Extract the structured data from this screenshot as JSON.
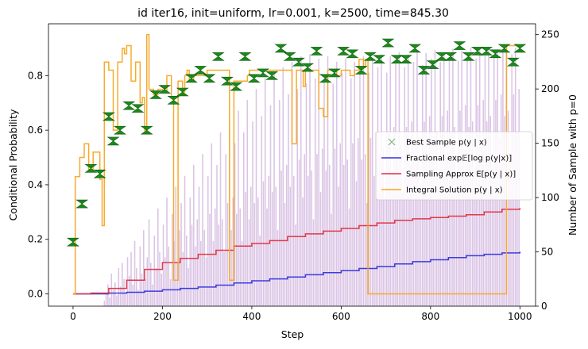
{
  "chart_data": {
    "type": "line",
    "title": "id iter16, init=uniform, lr=0.001, k=2500, time=845.30",
    "xlabel": "Step",
    "ylabel": "Conditional Probability",
    "y2label": "Number of Sample with p=0",
    "xlim": [
      -55,
      1035
    ],
    "ylim": [
      -0.045,
      0.99
    ],
    "y2lim": [
      0,
      260
    ],
    "xticks": [
      0,
      200,
      400,
      600,
      800,
      1000
    ],
    "yticks": [
      0.0,
      0.2,
      0.4,
      0.6,
      0.8
    ],
    "ytick_labels": [
      "0.0",
      "0.2",
      "0.4",
      "0.6",
      "0.8"
    ],
    "y2ticks": [
      0,
      50,
      100,
      150,
      200,
      250
    ],
    "grid": false,
    "legend_position": "center-right",
    "colors": {
      "best_sample": "#1a8a1a",
      "fractional": "#3333dd",
      "sampling": "#e03040",
      "integral": "#f5a623",
      "zero_count_bars": "#b07cc6",
      "y2label": "#800080"
    },
    "series": [
      {
        "name": "Best Sample $p(y \\mid x)$",
        "legend_label": "Best Sample p(y | x)",
        "kind": "scatter",
        "x": [
          0,
          20,
          40,
          60,
          80,
          90,
          105,
          125,
          145,
          165,
          185,
          205,
          225,
          245,
          265,
          285,
          305,
          325,
          345,
          365,
          385,
          405,
          425,
          445,
          465,
          485,
          505,
          525,
          545,
          565,
          585,
          605,
          625,
          645,
          665,
          685,
          705,
          725,
          745,
          765,
          785,
          805,
          825,
          845,
          865,
          885,
          905,
          925,
          945,
          965,
          985,
          1000
        ],
        "y": [
          0.19,
          0.33,
          0.46,
          0.44,
          0.65,
          0.56,
          0.6,
          0.69,
          0.68,
          0.6,
          0.73,
          0.75,
          0.71,
          0.74,
          0.79,
          0.82,
          0.79,
          0.87,
          0.78,
          0.76,
          0.87,
          0.79,
          0.81,
          0.8,
          0.9,
          0.87,
          0.85,
          0.83,
          0.89,
          0.79,
          0.81,
          0.89,
          0.88,
          0.82,
          0.87,
          0.86,
          0.92,
          0.86,
          0.86,
          0.9,
          0.82,
          0.84,
          0.87,
          0.87,
          0.91,
          0.87,
          0.89,
          0.89,
          0.88,
          0.9,
          0.85,
          0.9
        ]
      },
      {
        "name": "Fractional $\\exp\\mathbb{E}[\\log p(y|x)]$",
        "legend_label": "Fractional exp𝔼[log p(y|x)]",
        "kind": "step",
        "x": [
          0,
          80,
          120,
          160,
          200,
          240,
          280,
          320,
          360,
          400,
          440,
          480,
          520,
          560,
          600,
          640,
          680,
          720,
          760,
          800,
          840,
          880,
          920,
          960,
          1000
        ],
        "y": [
          0.0,
          0.003,
          0.006,
          0.01,
          0.015,
          0.02,
          0.025,
          0.032,
          0.04,
          0.048,
          0.055,
          0.062,
          0.07,
          0.078,
          0.085,
          0.093,
          0.1,
          0.11,
          0.118,
          0.125,
          0.133,
          0.14,
          0.145,
          0.15,
          0.155
        ]
      },
      {
        "name": "Sampling Approx $E[p(y \\mid x)]$",
        "legend_label": "Sampling Approx E[p(y | x)]",
        "kind": "step",
        "x": [
          0,
          40,
          80,
          120,
          160,
          200,
          240,
          280,
          320,
          360,
          400,
          440,
          480,
          520,
          560,
          600,
          640,
          680,
          720,
          760,
          800,
          840,
          880,
          920,
          960,
          1000
        ],
        "y": [
          0.0,
          0.003,
          0.02,
          0.05,
          0.09,
          0.115,
          0.13,
          0.145,
          0.16,
          0.175,
          0.185,
          0.195,
          0.21,
          0.22,
          0.23,
          0.24,
          0.25,
          0.26,
          0.27,
          0.275,
          0.28,
          0.285,
          0.29,
          0.3,
          0.31,
          0.315
        ]
      },
      {
        "name": "Integral Solution $p(y \\mid x)$",
        "legend_label": "Integral Solution p(y | x)",
        "kind": "step",
        "x": [
          0,
          5,
          15,
          25,
          35,
          45,
          60,
          65,
          70,
          80,
          90,
          100,
          110,
          115,
          120,
          130,
          140,
          150,
          155,
          160,
          165,
          170,
          180,
          190,
          200,
          210,
          220,
          225,
          235,
          245,
          250,
          255,
          260,
          270,
          290,
          300,
          345,
          350,
          360,
          390,
          395,
          420,
          430,
          470,
          480,
          490,
          500,
          510,
          515,
          520,
          530,
          545,
          550,
          560,
          570,
          580,
          590,
          600,
          620,
          630,
          640,
          650,
          655,
          660,
          670,
          675,
          680,
          700,
          710,
          730,
          740,
          760,
          790,
          810,
          830,
          840,
          850,
          870,
          880,
          890,
          920,
          930,
          940,
          960,
          970,
          975,
          1000
        ],
        "y": [
          0.0,
          0.43,
          0.5,
          0.55,
          0.45,
          0.52,
          0.42,
          0.25,
          0.85,
          0.82,
          0.6,
          0.85,
          0.9,
          0.88,
          0.91,
          0.78,
          0.85,
          0.7,
          0.72,
          0.6,
          0.95,
          0.75,
          0.73,
          0.75,
          0.74,
          0.8,
          0.72,
          0.05,
          0.78,
          0.74,
          0.8,
          0.82,
          0.78,
          0.8,
          0.8,
          0.82,
          0.82,
          0.05,
          0.78,
          0.8,
          0.82,
          0.82,
          0.82,
          0.82,
          0.82,
          0.55,
          0.82,
          0.82,
          0.76,
          0.82,
          0.82,
          0.82,
          0.68,
          0.65,
          0.82,
          0.82,
          0.8,
          0.82,
          0.8,
          0.82,
          0.86,
          0.83,
          0.86,
          0.0,
          0.0,
          0.0,
          0.0,
          0.0,
          0.0,
          0.0,
          0.0,
          0.0,
          0.0,
          0.0,
          0.0,
          0.0,
          0.0,
          0.0,
          0.0,
          0.0,
          0.0,
          0.0,
          0.0,
          0.0,
          0.91,
          0.91,
          0.91
        ]
      }
    ],
    "bars": {
      "name": "Number of Sample with p=0",
      "axis": "y2",
      "x_start": 70,
      "x_end": 1000,
      "x_step": 4,
      "values": [
        5,
        12,
        20,
        8,
        30,
        15,
        22,
        10,
        35,
        18,
        40,
        25,
        12,
        45,
        28,
        50,
        20,
        60,
        35,
        15,
        55,
        30,
        70,
        25,
        45,
        80,
        40,
        20,
        65,
        35,
        90,
        50,
        30,
        75,
        45,
        100,
        55,
        25,
        85,
        60,
        110,
        40,
        70,
        95,
        50,
        120,
        65,
        35,
        100,
        75,
        130,
        55,
        80,
        110,
        60,
        140,
        70,
        45,
        120,
        85,
        150,
        60,
        90,
        130,
        75,
        160,
        80,
        50,
        140,
        95,
        170,
        70,
        100,
        150,
        85,
        180,
        90,
        60,
        160,
        105,
        190,
        80,
        110,
        170,
        95,
        200,
        100,
        65,
        175,
        115,
        210,
        90,
        120,
        185,
        105,
        215,
        110,
        70,
        190,
        125,
        220,
        95,
        130,
        195,
        110,
        225,
        120,
        75,
        200,
        135,
        230,
        100,
        140,
        205,
        120,
        232,
        125,
        80,
        210,
        140,
        228,
        105,
        145,
        210,
        125,
        230,
        130,
        85,
        205,
        145,
        225,
        110,
        150,
        215,
        130,
        228,
        135,
        90,
        210,
        150,
        225,
        115,
        155,
        220,
        135,
        230,
        140,
        95,
        215,
        155,
        228,
        120,
        160,
        220,
        140,
        232,
        145,
        100,
        215,
        160,
        230,
        125,
        165,
        225,
        145,
        234,
        150,
        105,
        220,
        165,
        232,
        130,
        170,
        225,
        150,
        235,
        155,
        110,
        222,
        170,
        233,
        135,
        175,
        228,
        155,
        236,
        160,
        115,
        225,
        175,
        234,
        140,
        180,
        228,
        160,
        237,
        165,
        120,
        226,
        180,
        235,
        145,
        185,
        230,
        165,
        238,
        170,
        125,
        228,
        185,
        236,
        150,
        190,
        232,
        170,
        238,
        175,
        130,
        230,
        190,
        237,
        155,
        195,
        234,
        175,
        240,
        180,
        135,
        232,
        195,
        238,
        160,
        200,
        235
      ]
    }
  }
}
